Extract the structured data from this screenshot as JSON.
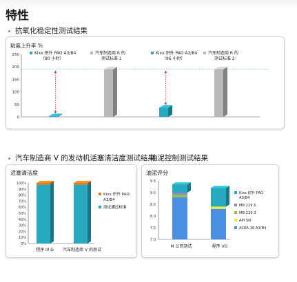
{
  "page": {
    "title": "特性",
    "section1": "抗氧化稳定性测试结果",
    "section2": "汽车制造商 V 的发动机活塞清洁度测试结果",
    "section3": "油泥控制测试结果"
  },
  "colors": {
    "teal": "#27a9bf",
    "gray": "#b8b8b8",
    "red_dashed": "#d7263d",
    "threshold": "#46b3e6",
    "orange": "#e07a22",
    "purple": "#8f86c4",
    "green": "#8cc63f",
    "yellow": "#ecec3a",
    "blue": "#4a90e2"
  },
  "chart_data": [
    {
      "type": "bar",
      "ylabel": "粘度上升率 %",
      "ylim": [
        0,
        250
      ],
      "yticks": [
        "0",
        "50",
        "100",
        "150",
        "200",
        "250"
      ],
      "threshold": 190,
      "categories": [
        "Kixx 炽升 PAO A3/B4 （80 小时）",
        "汽车制造商 R 的测试标准 1",
        "Kixx 炽升 PAO A3/B4 （96 小时）",
        "汽车制造商 R 的测试标准 2"
      ],
      "values": [
        3,
        190,
        37,
        190
      ],
      "legend": [
        {
          "lines": [
            "Kixx 炽升 PAO A3/B4",
            "（80 小时）"
          ],
          "color": "#27a9bf"
        },
        {
          "lines": [
            "汽车制造商 R 的",
            "测试标准 1"
          ],
          "color": "#b8b8b8"
        },
        {
          "lines": [
            "Kixx 炽升 PAO A3/B4",
            "（96 小时）"
          ],
          "color": "#27a9bf"
        },
        {
          "lines": [
            "汽车制造商 R 的",
            "测试标准 2"
          ],
          "color": "#b8b8b8"
        }
      ]
    },
    {
      "type": "bar",
      "title": "活塞清洁度",
      "ylim": [
        0,
        100
      ],
      "yticks": [
        "0%",
        "10%",
        "20%",
        "30%",
        "40%",
        "50%",
        "60%",
        "70%",
        "80%",
        "90%",
        "100%"
      ],
      "categories": [
        "程序 III G",
        "汽车制造商 V 的测试"
      ],
      "series": [
        {
          "name": "Kixx 炽升 PAO A3/B4",
          "values": [
            3,
            3
          ],
          "color": "#e07a22"
        },
        {
          "name": "测试通过标准",
          "values": [
            97,
            97
          ],
          "color": "#27a9bf"
        }
      ],
      "legend": [
        {
          "lines": [
            "Kixx 炽升 PAO",
            "A3/B4"
          ],
          "color": "#e07a22"
        },
        {
          "lines": [
            "测试通过标准"
          ],
          "color": "#27a9bf"
        }
      ]
    },
    {
      "type": "bar",
      "title": "油泥评分",
      "ylim": [
        7.0,
        9.5
      ],
      "yticks": [
        "7.0",
        "7.5",
        "8.0",
        "8.5",
        "9.0",
        "9.5"
      ],
      "categories": [
        "M 公司测试",
        "程序 VG"
      ],
      "series": [
        {
          "name": "Kixx 炽升 PAO A3/B4",
          "values": [
            9.35,
            9.2
          ],
          "color": "#27a9bf"
        },
        {
          "name": "MB 229.5",
          "values": [
            9.0,
            null
          ],
          "color": "#8f86c4"
        },
        {
          "name": "MB 229.3",
          "values": [
            8.9,
            null
          ],
          "color": "#8cc63f"
        },
        {
          "name": "API SN",
          "values": [
            null,
            8.4
          ],
          "color": "#ecec3a"
        },
        {
          "name": "ACEA-16 A3/B4",
          "values": [
            8.8,
            8.3
          ],
          "color": "#4a90e2"
        }
      ],
      "legend": [
        {
          "lines": [
            "Kixx 炽升 PAO",
            "A3/B4"
          ],
          "color": "#27a9bf"
        },
        {
          "lines": [
            "MB 229.5"
          ],
          "color": "#8f86c4"
        },
        {
          "lines": [
            "MB 229.3"
          ],
          "color": "#8cc63f"
        },
        {
          "lines": [
            "API SN"
          ],
          "color": "#ecec3a"
        },
        {
          "lines": [
            "ACEA-16 A3/B4"
          ],
          "color": "#4a90e2"
        }
      ]
    }
  ]
}
